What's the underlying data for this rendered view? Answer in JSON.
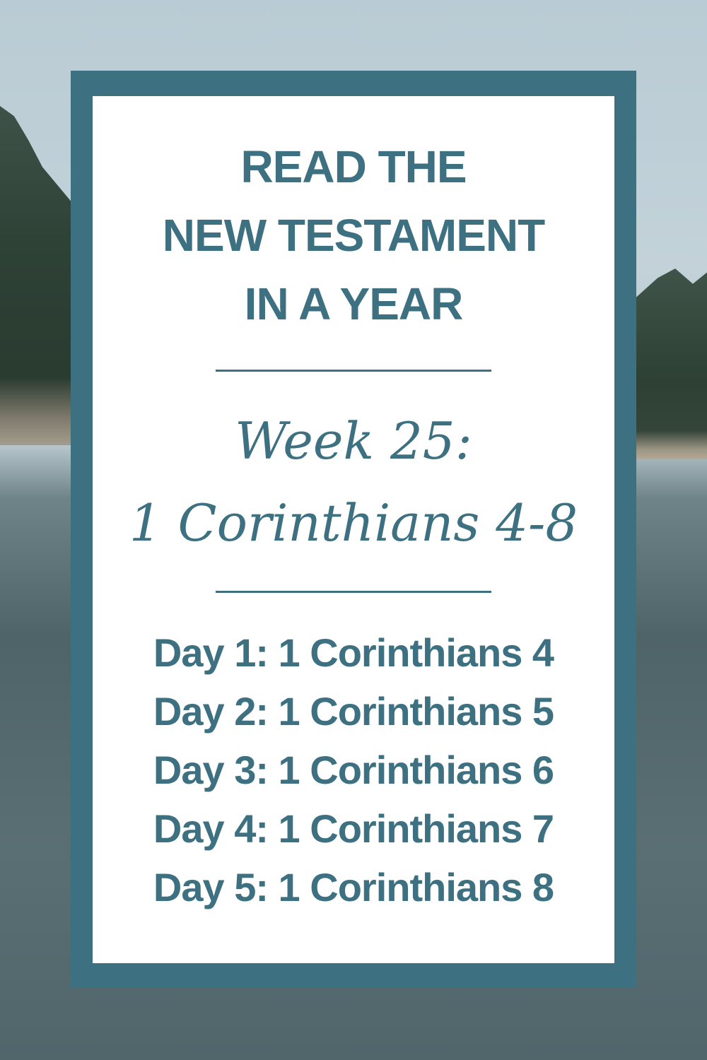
{
  "colors": {
    "frame": "#3d7080",
    "text": "#3d7080",
    "card": "#ffffff"
  },
  "title_lines": [
    "READ THE",
    "NEW TESTAMENT",
    "IN A YEAR"
  ],
  "week_label": "Week 25:",
  "range_label": "1 Corinthians 4-8",
  "days": [
    "Day 1: 1 Corinthians 4",
    "Day 2: 1 Corinthians 5",
    "Day 3: 1 Corinthians 6",
    "Day 4: 1 Corinthians 7",
    "Day 5: 1 Corinthians 8"
  ]
}
